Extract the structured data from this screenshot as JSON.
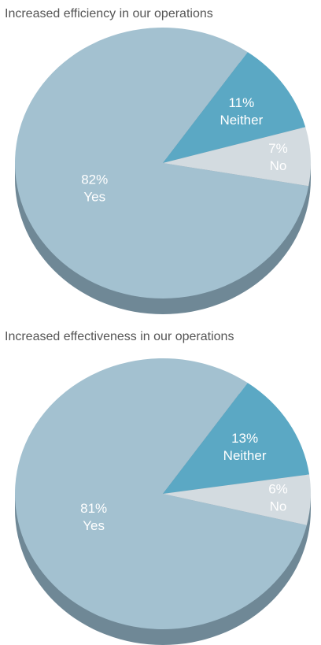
{
  "chart_data": [
    {
      "type": "pie",
      "title": "Increased efficiency in our operations",
      "categories": [
        "Yes",
        "Neither",
        "No"
      ],
      "values": [
        82,
        11,
        7
      ],
      "value_labels": [
        "82%",
        "11%",
        "7%"
      ],
      "colors": [
        "#a3c1d0",
        "#5ba8c4",
        "#d3dbe0"
      ]
    },
    {
      "type": "pie",
      "title": "Increased effectiveness in our operations",
      "categories": [
        "Yes",
        "Neither",
        "No"
      ],
      "values": [
        81,
        13,
        6
      ],
      "value_labels": [
        "81%",
        "13%",
        "6%"
      ],
      "colors": [
        "#a3c1d0",
        "#5ba8c4",
        "#d3dbe0"
      ]
    }
  ]
}
